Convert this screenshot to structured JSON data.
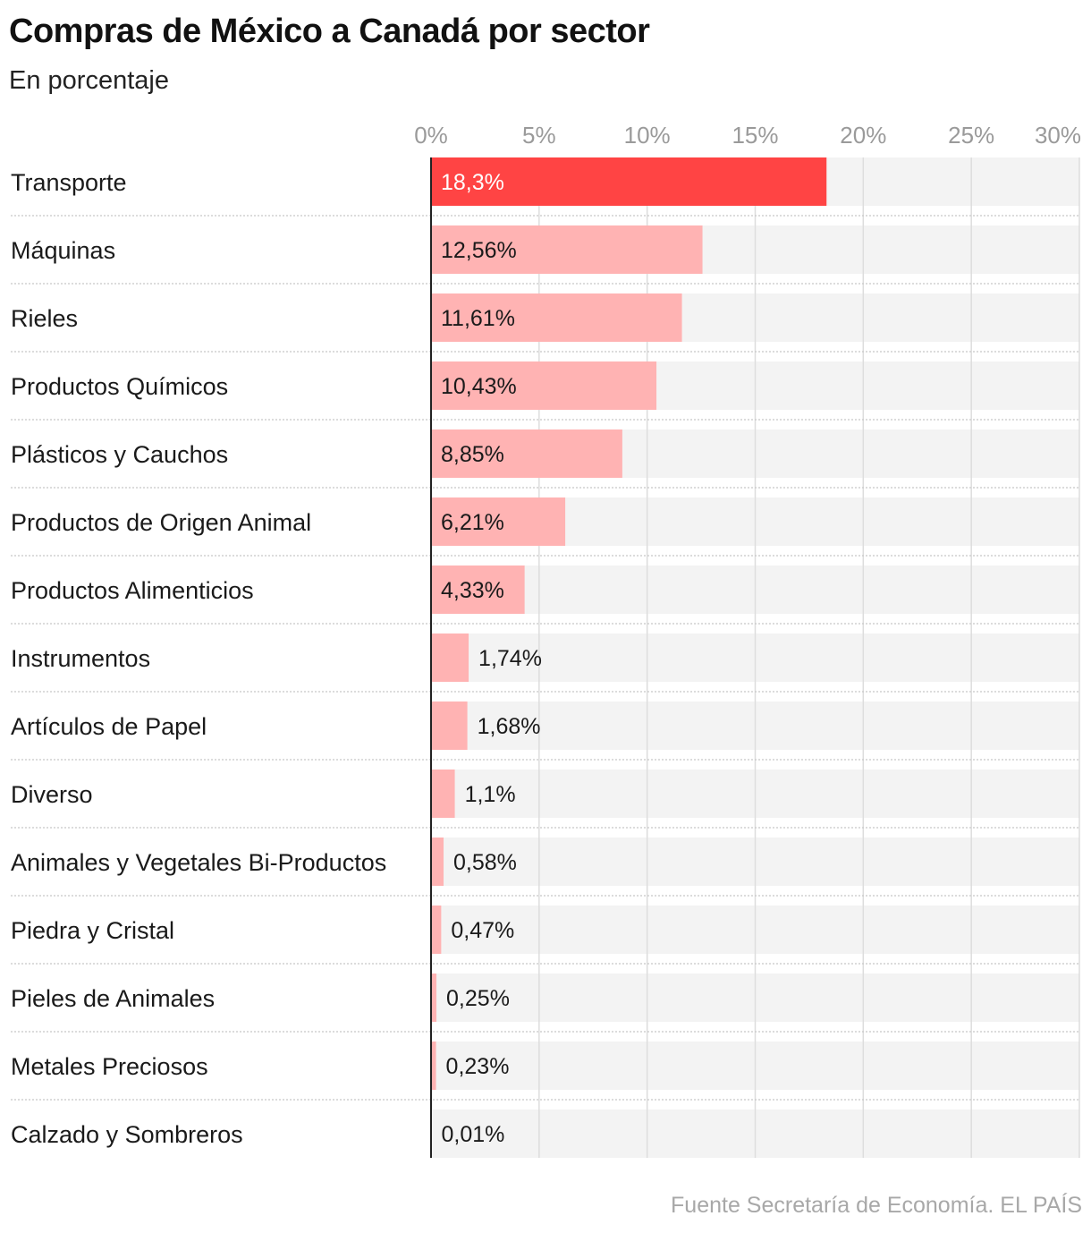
{
  "chart_data": {
    "type": "bar",
    "orientation": "horizontal",
    "title": "Compras de México a Canadá por sector",
    "subtitle": "En porcentaje",
    "xlim": [
      0,
      30
    ],
    "ticks": [
      0,
      5,
      10,
      15,
      20,
      25,
      30
    ],
    "tick_labels": [
      "0%",
      "5%",
      "10%",
      "15%",
      "20%",
      "25%",
      "30%"
    ],
    "categories": [
      "Transporte",
      "Máquinas",
      "Rieles",
      "Productos Químicos",
      "Plásticos y Cauchos",
      "Productos de Origen Animal",
      "Productos Alimenticios",
      "Instrumentos",
      "Artículos de Papel",
      "Diverso",
      "Animales y Vegetales Bi-Productos",
      "Piedra y Cristal",
      "Pieles de Animales",
      "Metales Preciosos",
      "Calzado y Sombreros"
    ],
    "values": [
      18.3,
      12.56,
      11.61,
      10.43,
      8.85,
      6.21,
      4.33,
      1.74,
      1.68,
      1.1,
      0.58,
      0.47,
      0.25,
      0.23,
      0.01
    ],
    "value_labels": [
      "18,3%",
      "12,56%",
      "11,61%",
      "10,43%",
      "8,85%",
      "6,21%",
      "4,33%",
      "1,74%",
      "1,68%",
      "1,1%",
      "0,58%",
      "0,47%",
      "0,25%",
      "0,23%",
      "0,01%"
    ],
    "highlight_index": 0,
    "colors": {
      "highlight": "#ff4444",
      "bar": "#ffb3b3",
      "track": "#f3f3f3",
      "grid": "#dddddd"
    }
  },
  "source": "Fuente Secretaría de Economía. EL PAÍS"
}
